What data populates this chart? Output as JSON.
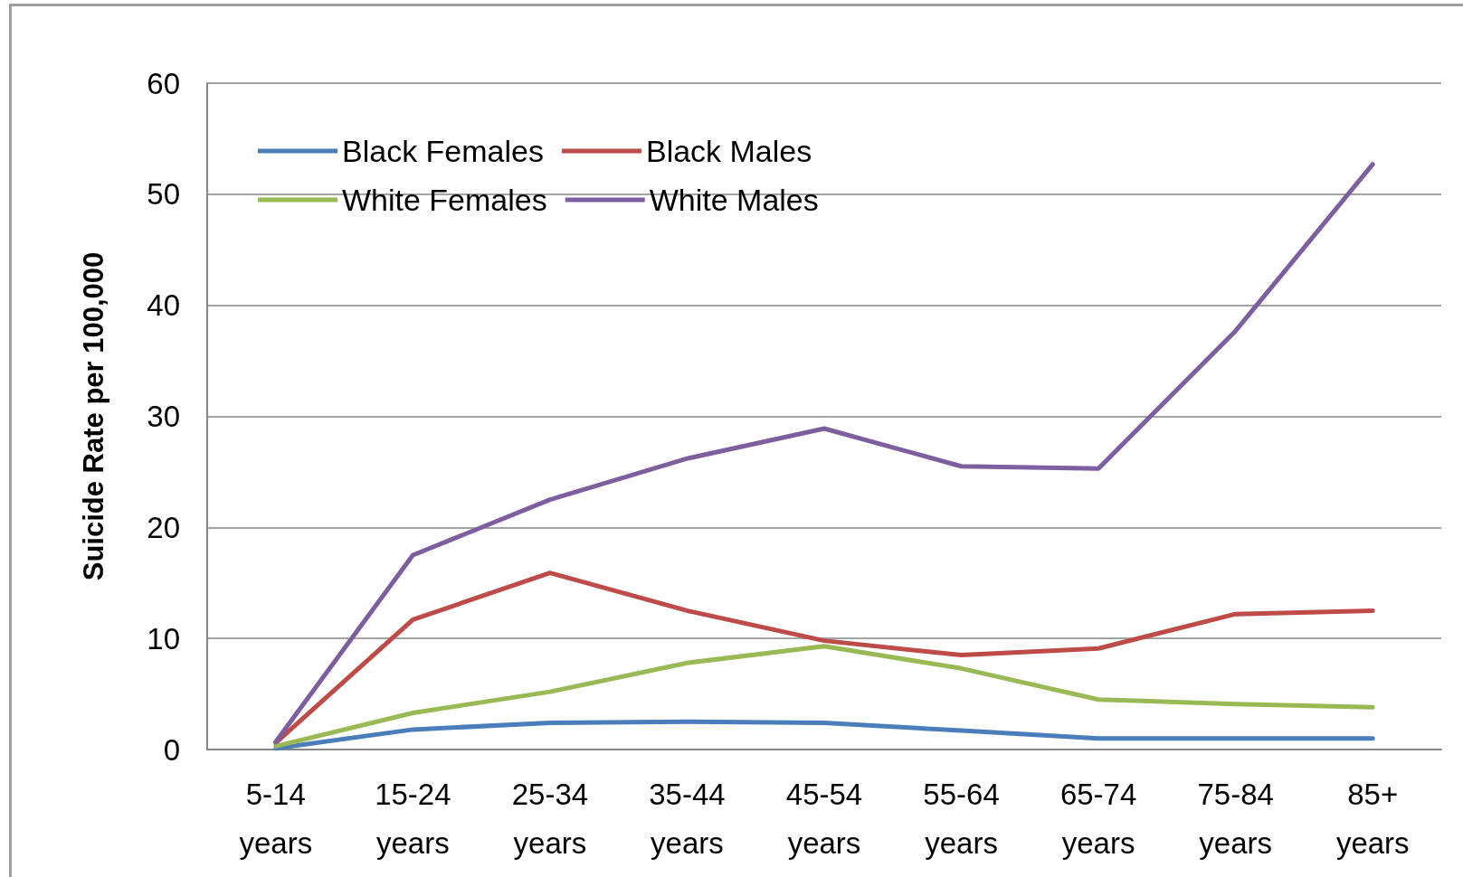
{
  "chart_data": {
    "type": "line",
    "ylabel": "Suicide Rate per 100,000",
    "categories": [
      "5-14 years",
      "15-24 years",
      "25-34 years",
      "35-44 years",
      "45-54 years",
      "55-64 years",
      "65-74 years",
      "75-84 years",
      "85+ years"
    ],
    "series": [
      {
        "name": "Black Females",
        "color": "#4a7ebb",
        "values": [
          0.1,
          1.8,
          2.4,
          2.5,
          2.4,
          1.7,
          1.0,
          1.0,
          1.0
        ]
      },
      {
        "name": "Black Males",
        "color": "#be4b48",
        "values": [
          0.6,
          11.7,
          15.9,
          12.5,
          9.8,
          8.5,
          9.1,
          12.2,
          12.5
        ]
      },
      {
        "name": "White Females",
        "color": "#98b954",
        "values": [
          0.3,
          3.3,
          5.2,
          7.8,
          9.3,
          7.3,
          4.5,
          4.1,
          3.8
        ]
      },
      {
        "name": "White Males",
        "color": "#7d5fa0",
        "values": [
          0.7,
          17.5,
          22.5,
          26.2,
          28.9,
          25.5,
          25.3,
          37.7,
          52.7
        ]
      }
    ],
    "ylim": [
      0,
      60
    ],
    "yticks": [
      0,
      10,
      20,
      30,
      40,
      50,
      60
    ],
    "grid": "y",
    "legend": "top left",
    "marker": "none",
    "line_style": "solid"
  }
}
